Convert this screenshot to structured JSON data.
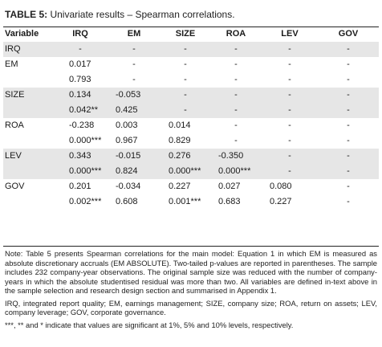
{
  "title": {
    "label": "TABLE 5:",
    "text": "Univariate results – Spearman correlations."
  },
  "columns": [
    "Variable",
    "IRQ",
    "EM",
    "SIZE",
    "ROA",
    "LEV",
    "GOV"
  ],
  "rows": [
    {
      "shade": true,
      "cells": [
        "IRQ",
        "-",
        "-",
        "-",
        "-",
        "-",
        "-"
      ]
    },
    {
      "shade": false,
      "cells": [
        "EM",
        "0.017",
        "-",
        "-",
        "-",
        "-",
        "-"
      ]
    },
    {
      "shade": false,
      "cells": [
        "",
        "0.793",
        "-",
        "-",
        "-",
        "-",
        "-"
      ]
    },
    {
      "shade": true,
      "cells": [
        "SIZE",
        "0.134",
        "-0.053",
        "-",
        "-",
        "-",
        "-"
      ]
    },
    {
      "shade": true,
      "cells": [
        "",
        "0.042**",
        "0.425",
        "-",
        "-",
        "-",
        "-"
      ]
    },
    {
      "shade": false,
      "cells": [
        "ROA",
        "-0.238",
        "0.003",
        "0.014",
        "-",
        "-",
        "-"
      ]
    },
    {
      "shade": false,
      "cells": [
        "",
        "0.000***",
        "0.967",
        "0.829",
        "-",
        "-",
        "-"
      ]
    },
    {
      "shade": true,
      "cells": [
        "LEV",
        "0.343",
        "-0.015",
        "0.276",
        "-0.350",
        "-",
        "-"
      ]
    },
    {
      "shade": true,
      "cells": [
        "",
        "0.000***",
        "0.824",
        "0.000***",
        "0.000***",
        "-",
        "-"
      ]
    },
    {
      "shade": false,
      "cells": [
        "GOV",
        "0.201",
        "-0.034",
        "0.227",
        "0.027",
        "0.080",
        "-"
      ]
    },
    {
      "shade": false,
      "cells": [
        "",
        "0.002***",
        "0.608",
        "0.001***",
        "0.683",
        "0.227",
        "-"
      ]
    }
  ],
  "notes": [
    "Note: Table 5 presents Spearman correlations for the main model: Equation 1 in which EM is measured as absolute discretionary accruals (EM ABSOLUTE). Two-tailed p-values are reported in parentheses. The sample includes 232 company-year observations. The original sample size was reduced with the number of company-years in which the absolute studentised residual was more than two. All variables are defined in-text above in the sample selection and research design section and summarised in Appendix 1.",
    "IRQ, integrated report quality; EM, earnings management; SIZE, company size; ROA, return on assets; LEV, company leverage; GOV, corporate governance.",
    "***, ** and * indicate that values are significant at 1%, 5% and 10% levels, respectively."
  ]
}
